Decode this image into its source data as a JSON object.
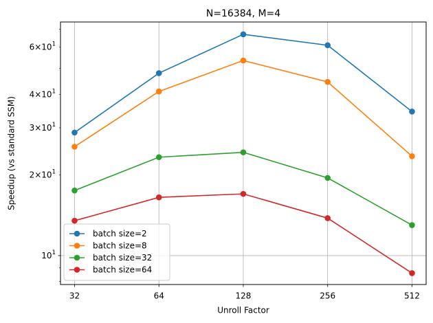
{
  "chart_data": {
    "type": "line",
    "title": "N=16384, M=4",
    "xlabel": "Unroll Factor",
    "ylabel": "Speedup (vs standard SSM)",
    "x_scale": "log2",
    "y_scale": "log10",
    "x": [
      32,
      64,
      128,
      256,
      512
    ],
    "x_tick_labels": [
      "32",
      "64",
      "128",
      "256",
      "512"
    ],
    "xlim": [
      28.5,
      575
    ],
    "ylim": [
      7.8,
      74.5
    ],
    "y_ticks": [
      {
        "value": 10,
        "mantissa": "10",
        "exponent": "1"
      },
      {
        "value": 20,
        "mantissa": "2×10",
        "exponent": "1"
      },
      {
        "value": 30,
        "mantissa": "3×10",
        "exponent": "1"
      },
      {
        "value": 40,
        "mantissa": "4×10",
        "exponent": "1"
      },
      {
        "value": 60,
        "mantissa": "6×10",
        "exponent": "1"
      }
    ],
    "grid": true,
    "legend_position": "lower-left",
    "series": [
      {
        "name": "batch size=2",
        "color": "#1f77b4",
        "values": [
          28.8,
          48.0,
          67.0,
          61.0,
          34.5
        ]
      },
      {
        "name": "batch size=8",
        "color": "#ff7f0e",
        "values": [
          25.5,
          41.0,
          53.5,
          44.5,
          23.5
        ]
      },
      {
        "name": "batch size=32",
        "color": "#2ca02c",
        "values": [
          17.5,
          23.3,
          24.3,
          19.5,
          13.0
        ]
      },
      {
        "name": "batch size=64",
        "color": "#d62728",
        "values": [
          13.5,
          16.5,
          17.0,
          13.8,
          8.6
        ]
      }
    ]
  }
}
